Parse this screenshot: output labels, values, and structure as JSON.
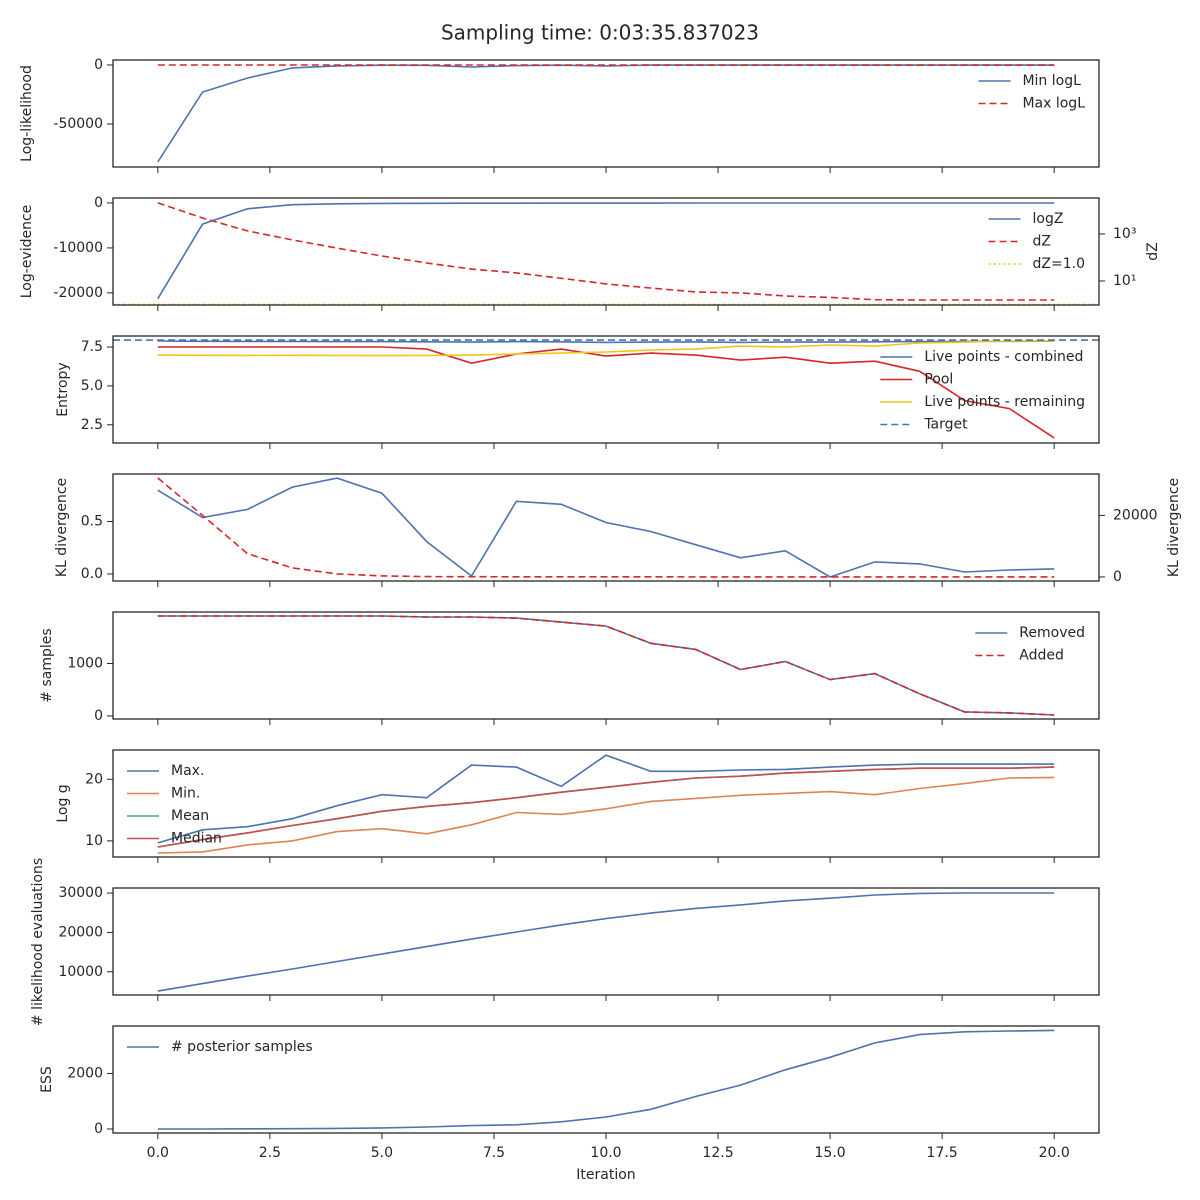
{
  "title": "Sampling time: 0:03:35.837023",
  "chart_data": [
    {
      "type": "line",
      "ylabel": "Log-likelihood",
      "x": [
        0,
        1,
        2,
        3,
        4,
        5,
        6,
        7,
        8,
        9,
        10,
        11,
        12,
        13,
        14,
        15,
        16,
        17,
        18,
        19,
        20
      ],
      "xlim": [
        -1,
        21
      ],
      "ylim": [
        -86400,
        4200
      ],
      "yticks": [
        -50000,
        0
      ],
      "legend": "upper right",
      "series": [
        {
          "name": "Min logL",
          "color": "#4c72b0",
          "style": "solid",
          "values": [
            -82200,
            -22900,
            -11000,
            -2500,
            -800,
            -200,
            -300,
            -1700,
            -500,
            -200,
            -800,
            -100,
            -100,
            -100,
            -100,
            -100,
            -100,
            -100,
            -100,
            -100,
            -100
          ]
        },
        {
          "name": "Max logL",
          "color": "#d62728",
          "style": "dashed",
          "values": [
            0,
            0,
            0,
            0,
            0,
            0,
            0,
            0,
            0,
            0,
            0,
            0,
            0,
            0,
            0,
            0,
            0,
            0,
            0,
            0,
            0
          ]
        }
      ]
    },
    {
      "type": "line",
      "ylabel": "Log-evidence",
      "y2label": "dZ",
      "x": [
        0,
        1,
        2,
        3,
        4,
        5,
        6,
        7,
        8,
        9,
        10,
        11,
        12,
        13,
        14,
        15,
        16,
        17,
        18,
        19,
        20
      ],
      "xlim": [
        -1,
        21
      ],
      "ylim": [
        -22700,
        1100
      ],
      "yticks": [
        -20000,
        -10000,
        0
      ],
      "y2lim": [
        0.95,
        33900
      ],
      "y2log": true,
      "y2ticks": [
        {
          "value": 10,
          "label": "10¹"
        },
        {
          "value": 1000,
          "label": "10³"
        }
      ],
      "legend": "upper right",
      "series": [
        {
          "name": "logZ",
          "color": "#4c72b0",
          "style": "solid",
          "values": [
            -21300,
            -4700,
            -1300,
            -400,
            -200,
            -100,
            -80,
            -60,
            -50,
            -40,
            -30,
            -30,
            -20,
            -20,
            -20,
            -20,
            -20,
            -20,
            -20,
            -20,
            -20
          ]
        },
        {
          "name": "dZ",
          "color": "#d62728",
          "style": "dashed",
          "axis": "y2",
          "values": [
            21000,
            4800,
            1350,
            560,
            250,
            115,
            58,
            32,
            22,
            13,
            7.5,
            5,
            3.4,
            3.1,
            2.3,
            2.0,
            1.6,
            1.55,
            1.55,
            1.55,
            1.55
          ]
        },
        {
          "name": "dZ=1.0",
          "color": "#f2c418",
          "style": "dotted",
          "axis": "y2",
          "value": 1.0
        }
      ]
    },
    {
      "type": "line",
      "ylabel": "Entropy",
      "x": [
        0,
        1,
        2,
        3,
        4,
        5,
        6,
        7,
        8,
        9,
        10,
        11,
        12,
        13,
        14,
        15,
        16,
        17,
        18,
        19,
        20
      ],
      "xlim": [
        -1,
        21
      ],
      "ylim": [
        1.33,
        8.21
      ],
      "yticks": [
        2.5,
        {
          "value": 5,
          "label": "5.0"
        },
        7.5
      ],
      "legend": "right",
      "series": [
        {
          "name": "Live points - combined",
          "color": "#4c72b0",
          "style": "solid",
          "values": [
            7.89,
            7.87,
            7.86,
            7.86,
            7.85,
            7.85,
            7.84,
            7.82,
            7.85,
            7.84,
            7.8,
            7.82,
            7.83,
            7.8,
            7.82,
            7.82,
            7.84,
            7.85,
            7.86,
            7.87,
            7.88
          ]
        },
        {
          "name": "Pool",
          "color": "#d62728",
          "style": "solid",
          "values": [
            7.5,
            7.5,
            7.5,
            7.5,
            7.5,
            7.5,
            7.37,
            6.46,
            7.05,
            7.37,
            6.92,
            7.11,
            6.98,
            6.66,
            6.85,
            6.46,
            6.59,
            5.94,
            4.06,
            3.54,
            1.66
          ]
        },
        {
          "name": "Live points - remaining",
          "color": "#f2c418",
          "style": "solid",
          "values": [
            6.98,
            6.97,
            6.96,
            6.97,
            6.96,
            6.95,
            6.96,
            6.98,
            7.05,
            7.11,
            7.18,
            7.31,
            7.37,
            7.56,
            7.5,
            7.63,
            7.56,
            7.76,
            7.82,
            7.89,
            7.89
          ]
        },
        {
          "name": "Target",
          "color": "#4c72b0",
          "style": "dashed",
          "value": 7.95
        }
      ]
    },
    {
      "type": "line",
      "ylabel": "KL divergence",
      "y2label": "KL divergence",
      "x": [
        0,
        1,
        2,
        3,
        4,
        5,
        6,
        7,
        8,
        9,
        10,
        11,
        12,
        13,
        14,
        15,
        16,
        17,
        18,
        19,
        20
      ],
      "xlim": [
        -1,
        21
      ],
      "ylim": [
        -0.067,
        0.952
      ],
      "yticks": [
        {
          "value": 0,
          "label": "0.0"
        },
        0.5
      ],
      "y2lim": [
        -1311,
        33443
      ],
      "y2ticks": [
        0,
        20000
      ],
      "series": [
        {
          "name": "KL divergence",
          "color": "#4c72b0",
          "style": "solid",
          "values": [
            0.798,
            0.538,
            0.615,
            0.827,
            0.913,
            0.769,
            0.308,
            -0.019,
            0.692,
            0.663,
            0.49,
            0.404,
            0.279,
            0.154,
            0.221,
            -0.029,
            0.115,
            0.096,
            0.019,
            0.038,
            0.048
          ]
        },
        {
          "name": "KL divergence",
          "color": "#d62728",
          "style": "dashed",
          "axis": "y2",
          "values": [
            32130,
            20000,
            7540,
            2950,
            980,
            330,
            120,
            80,
            60,
            50,
            40,
            40,
            30,
            30,
            30,
            30,
            30,
            30,
            30,
            30,
            30
          ]
        }
      ]
    },
    {
      "type": "line",
      "ylabel": "# samples",
      "x": [
        0,
        1,
        2,
        3,
        4,
        5,
        6,
        7,
        8,
        9,
        10,
        11,
        12,
        13,
        14,
        15,
        16,
        17,
        18,
        19,
        20
      ],
      "xlim": [
        -1,
        21
      ],
      "ylim": [
        -58,
        1981
      ],
      "yticks": [
        0,
        1000
      ],
      "legend": "upper right",
      "series": [
        {
          "name": "Removed",
          "color": "#4c72b0",
          "style": "solid",
          "values": [
            1904,
            1904,
            1904,
            1904,
            1904,
            1904,
            1885,
            1885,
            1865,
            1788,
            1712,
            1385,
            1269,
            885,
            1038,
            692,
            808,
            423,
            77,
            58,
            19
          ]
        },
        {
          "name": "Added",
          "color": "#d62728",
          "style": "dashed",
          "values": [
            1904,
            1904,
            1904,
            1904,
            1904,
            1904,
            1885,
            1885,
            1865,
            1788,
            1712,
            1385,
            1269,
            885,
            1038,
            692,
            808,
            423,
            77,
            58,
            19
          ]
        }
      ]
    },
    {
      "type": "line",
      "ylabel": "Log g",
      "x": [
        0,
        1,
        2,
        3,
        4,
        5,
        6,
        7,
        8,
        9,
        10,
        11,
        12,
        13,
        14,
        15,
        16,
        17,
        18,
        19,
        20
      ],
      "xlim": [
        -1,
        21
      ],
      "ylim": [
        7.38,
        24.75
      ],
      "yticks": [
        10,
        20
      ],
      "legend": "upper left",
      "series": [
        {
          "name": "Max.",
          "color": "#4c72b0",
          "style": "solid",
          "values": [
            9.67,
            11.8,
            12.3,
            13.6,
            15.7,
            17.5,
            17.0,
            22.3,
            21.97,
            18.85,
            23.9,
            21.3,
            21.3,
            21.5,
            21.6,
            21.97,
            22.3,
            22.46,
            22.46,
            22.46,
            22.46
          ]
        },
        {
          "name": "Min.",
          "color": "#dd8452",
          "style": "solid",
          "values": [
            8.03,
            8.2,
            9.34,
            10.0,
            11.5,
            11.97,
            11.15,
            12.6,
            14.6,
            14.3,
            15.2,
            16.4,
            16.9,
            17.4,
            17.7,
            18.0,
            17.5,
            18.5,
            19.3,
            20.2,
            20.3
          ]
        },
        {
          "name": "Mean",
          "color": "#55a868",
          "style": "solid",
          "values": [
            9.0,
            10.2,
            11.3,
            12.5,
            13.6,
            14.8,
            15.6,
            16.2,
            17.0,
            17.9,
            18.7,
            19.5,
            20.2,
            20.5,
            21.0,
            21.3,
            21.6,
            21.8,
            21.8,
            21.8,
            21.97
          ]
        },
        {
          "name": "Median",
          "color": "#c44e52",
          "style": "solid",
          "values": [
            9.0,
            10.2,
            11.3,
            12.5,
            13.6,
            14.8,
            15.6,
            16.2,
            17.0,
            17.9,
            18.7,
            19.5,
            20.2,
            20.5,
            21.0,
            21.3,
            21.6,
            21.8,
            21.8,
            21.8,
            21.97
          ]
        }
      ]
    },
    {
      "type": "line",
      "ylabel": "# likelihood evaluations",
      "x": [
        0,
        1,
        2,
        3,
        4,
        5,
        6,
        7,
        8,
        9,
        10,
        11,
        12,
        13,
        14,
        15,
        16,
        17,
        18,
        19,
        20
      ],
      "xlim": [
        -1,
        21
      ],
      "ylim": [
        4103,
        31282
      ],
      "yticks": [
        10000,
        20000,
        30000
      ],
      "series": [
        {
          "name": "# likelihood evaluations",
          "color": "#4c72b0",
          "style": "solid",
          "values": [
            5100,
            7000,
            8900,
            10700,
            12600,
            14500,
            16400,
            18300,
            20100,
            21900,
            23500,
            24900,
            26100,
            27000,
            28000,
            28700,
            29500,
            29900,
            30000,
            30000,
            30000
          ]
        }
      ]
    },
    {
      "type": "line",
      "ylabel": "ESS",
      "xlabel": "Iteration",
      "x": [
        0,
        1,
        2,
        3,
        4,
        5,
        6,
        7,
        8,
        9,
        10,
        11,
        12,
        13,
        14,
        15,
        16,
        17,
        18,
        19,
        20
      ],
      "xlim": [
        -1,
        21
      ],
      "ylim": [
        -145,
        3709
      ],
      "yticks": [
        0,
        2000
      ],
      "xticks": [
        {
          "value": 0,
          "label": "0.0"
        },
        2.5,
        {
          "value": 5,
          "label": "5.0"
        },
        7.5,
        {
          "value": 10,
          "label": "10.0"
        },
        12.5,
        {
          "value": 15,
          "label": "15.0"
        },
        17.5,
        {
          "value": 20,
          "label": "20.0"
        }
      ],
      "legend": "upper left",
      "series": [
        {
          "name": "# posterior samples",
          "color": "#4c72b0",
          "style": "solid",
          "values": [
            0,
            0,
            5,
            10,
            20,
            40,
            70,
            120,
            150,
            260,
            430,
            710,
            1170,
            1580,
            2130,
            2580,
            3100,
            3400,
            3500,
            3530,
            3550
          ]
        }
      ]
    }
  ]
}
